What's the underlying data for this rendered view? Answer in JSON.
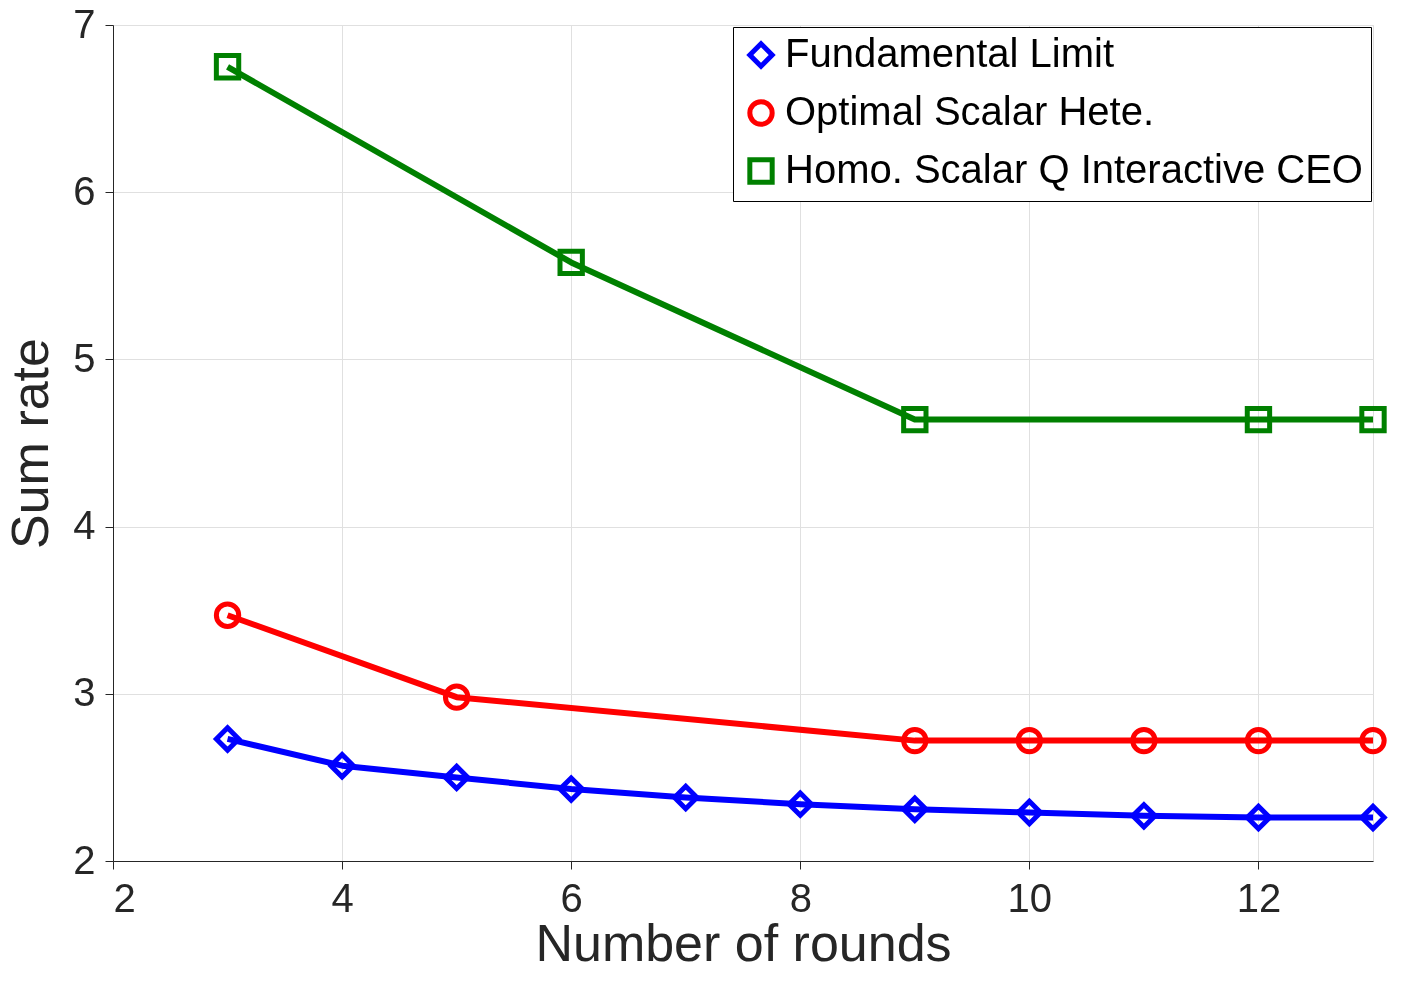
{
  "chart_data": {
    "type": "line",
    "xlabel": "Number of rounds",
    "ylabel": "Sum rate",
    "xlim": [
      2,
      13
    ],
    "xticks": [
      2,
      4,
      6,
      8,
      10,
      12
    ],
    "ylim": [
      2,
      7
    ],
    "yticks": [
      2,
      3,
      4,
      5,
      6,
      7
    ],
    "grid": true,
    "legend": "top right",
    "line_style": "solid",
    "series": [
      {
        "name": "Fundamental Limit",
        "color": "#0000ff",
        "marker": "diamond",
        "x": [
          3,
          4,
          5,
          6,
          7,
          8,
          9,
          10,
          11,
          12,
          13
        ],
        "values": [
          2.73,
          2.57,
          2.5,
          2.43,
          2.38,
          2.34,
          2.31,
          2.29,
          2.27,
          2.26,
          2.26
        ]
      },
      {
        "name": "Optimal Scalar Hete.",
        "color": "#ff0000",
        "marker": "circle",
        "x": [
          3,
          5,
          9,
          10,
          11,
          12,
          13
        ],
        "values": [
          3.47,
          2.98,
          2.72,
          2.72,
          2.72,
          2.72,
          2.72
        ]
      },
      {
        "name": "Homo. Scalar Q Interactive CEO",
        "color": "#008000",
        "marker": "square",
        "x": [
          3,
          6,
          9,
          12,
          13
        ],
        "values": [
          6.75,
          5.58,
          4.64,
          4.64,
          4.64
        ]
      }
    ]
  }
}
